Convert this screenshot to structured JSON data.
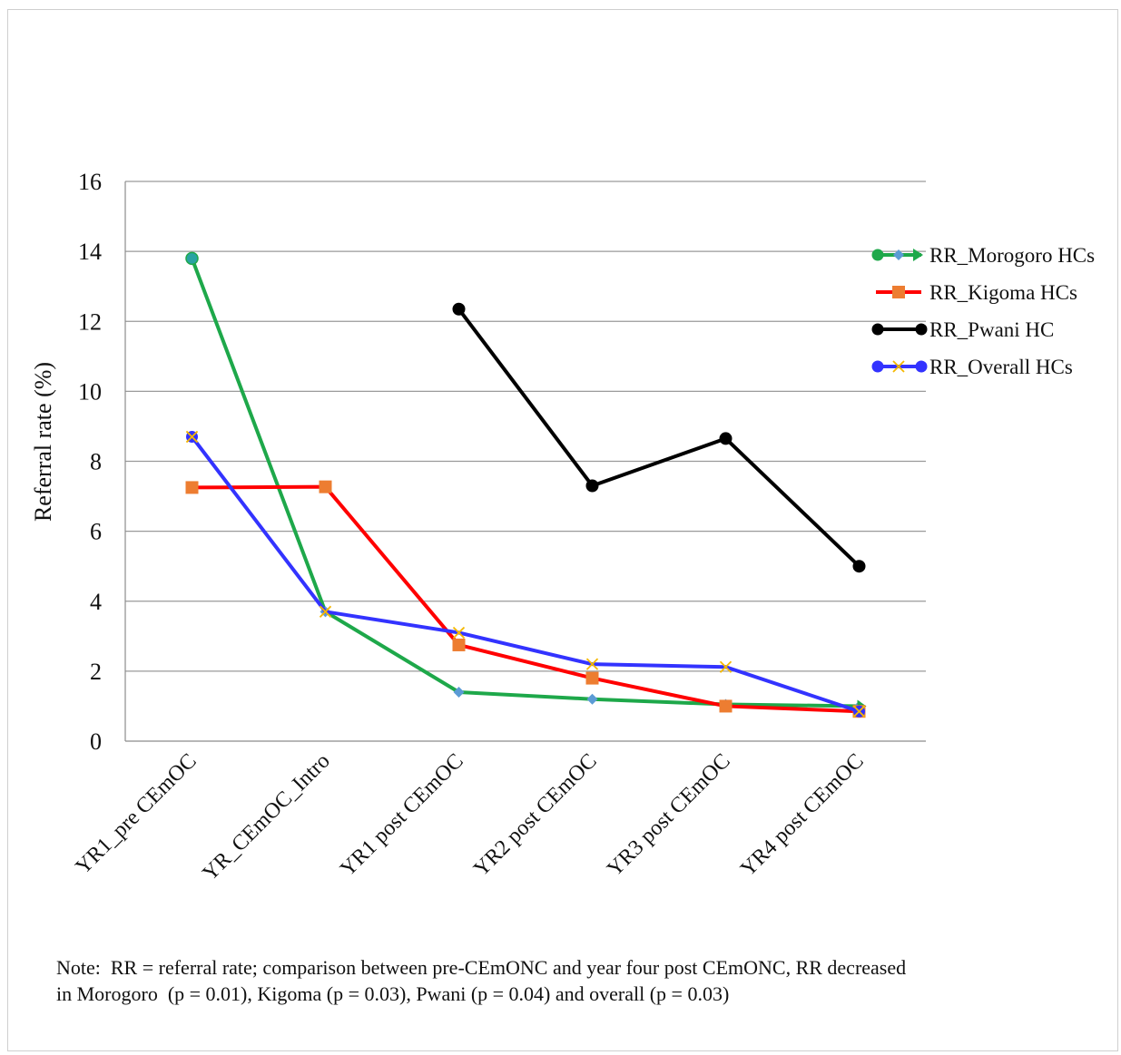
{
  "chart_data": {
    "type": "line",
    "title": "",
    "xlabel": "",
    "ylabel": "Referral rate (%)",
    "ylim": [
      0,
      16
    ],
    "yticks": [
      0,
      2,
      4,
      6,
      8,
      10,
      12,
      14,
      16
    ],
    "grid": true,
    "legend_position": "right",
    "categories": [
      "YR1_pre CEmOC",
      "YR_CEmOC_Intro",
      "YR1 post CEmOC",
      "YR2 post CEmOC",
      "YR3 post CEmOC",
      "YR4 post CEmOC"
    ],
    "series": [
      {
        "name": "RR_Morogoro HCs",
        "color": "#1ea84a",
        "marker": "diamond",
        "marker_color": "#5b9bd5",
        "values": [
          13.8,
          3.7,
          1.4,
          1.2,
          1.05,
          1.0
        ]
      },
      {
        "name": "RR_Kigoma HCs",
        "color": "#ff0000",
        "marker": "square",
        "marker_color": "#ed7d31",
        "values": [
          7.25,
          7.27,
          2.75,
          1.8,
          1.0,
          0.85
        ]
      },
      {
        "name": "RR_Pwani HC",
        "color": "#000000",
        "marker": "circle",
        "marker_color": "#000000",
        "values": [
          null,
          null,
          12.35,
          7.3,
          8.65,
          5.0
        ]
      },
      {
        "name": "RR_Overall HCs",
        "color": "#3333ff",
        "marker": "x",
        "marker_color": "#f5b800",
        "values": [
          8.7,
          3.7,
          3.1,
          2.2,
          2.12,
          0.85
        ]
      }
    ]
  },
  "note": "Note:  RR = referral rate; comparison between pre-CEmONC and year four post CEmONC, RR decreased in Morogoro  (p = 0.01), Kigoma (p = 0.03), Pwani (p = 0.04) and overall (p = 0.03)"
}
